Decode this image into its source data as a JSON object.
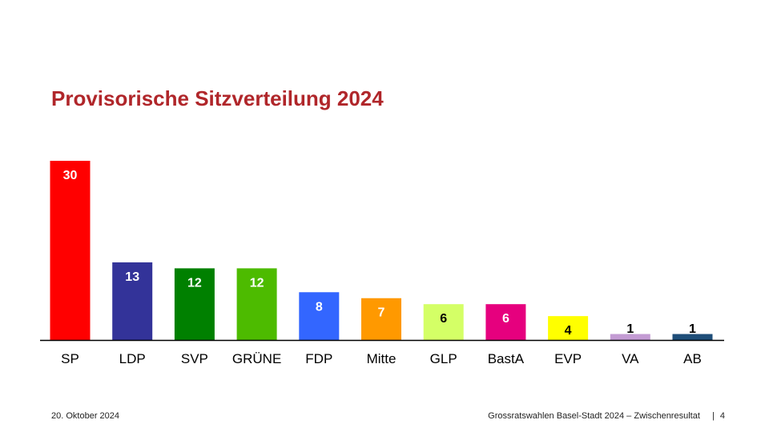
{
  "title": "Provisorische Sitzverteilung 2024",
  "footer": {
    "date": "20. Oktober 2024",
    "subtitle": "Grossratswahlen Basel-Stadt 2024 – Zwischenresultat",
    "separator": "|",
    "page": "4"
  },
  "chart_data": {
    "type": "bar",
    "categories": [
      "SP",
      "LDP",
      "SVP",
      "GRÜNE",
      "FDP",
      "Mitte",
      "GLP",
      "BastA",
      "EVP",
      "VA",
      "AB"
    ],
    "values": [
      30,
      13,
      12,
      12,
      8,
      7,
      6,
      6,
      4,
      1,
      1
    ],
    "colors": [
      "#ff0000",
      "#333399",
      "#008000",
      "#4dbb00",
      "#3366ff",
      "#ff9900",
      "#d4ff66",
      "#e6007e",
      "#ffff00",
      "#c39bd3",
      "#1f4e79"
    ],
    "label_colors": [
      "#ffffff",
      "#ffffff",
      "#ffffff",
      "#ffffff",
      "#ffffff",
      "#ffffff",
      "#000000",
      "#ffffff",
      "#000000",
      "#000000",
      "#000000"
    ],
    "ylim": [
      0,
      30
    ],
    "grid": false,
    "legend": "none",
    "xlabel": "",
    "ylabel": ""
  }
}
